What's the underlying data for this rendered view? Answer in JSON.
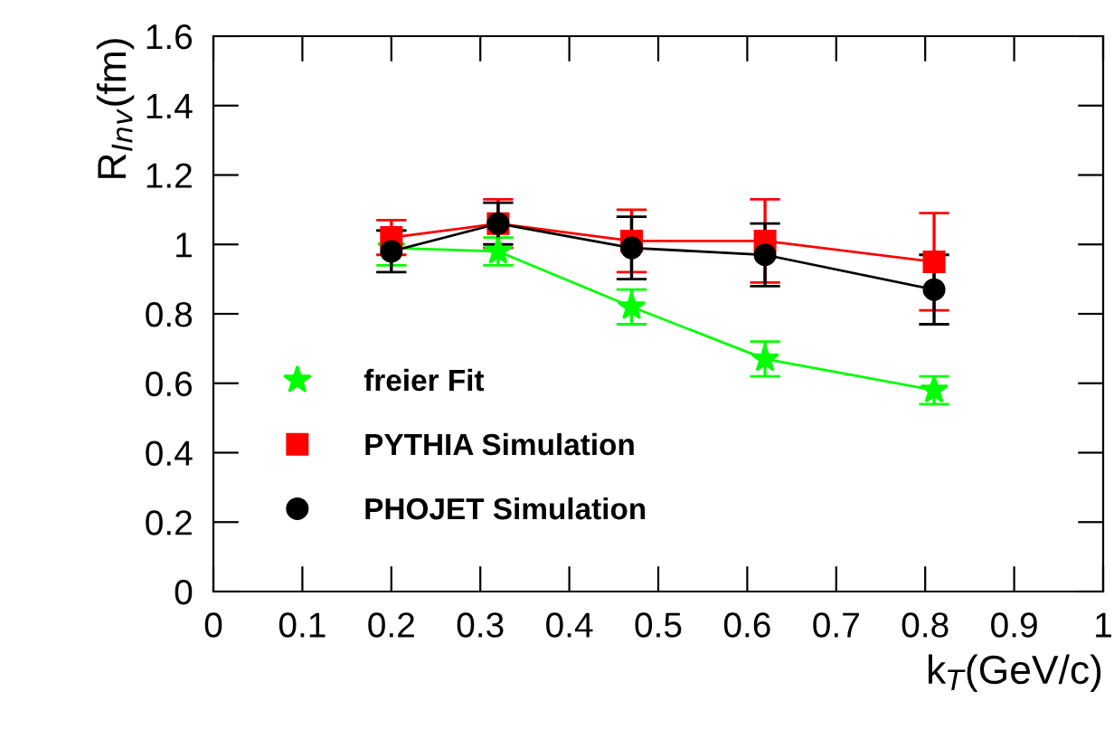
{
  "chart_data": {
    "type": "line",
    "xlabel": "k$_{T}$(GeV/c)",
    "ylabel": "R$_{Inv}$(fm)",
    "x": [
      0.2,
      0.32,
      0.47,
      0.62,
      0.81
    ],
    "xlim": [
      0,
      1
    ],
    "xticks": [
      0,
      0.1,
      0.2,
      0.3,
      0.4,
      0.5,
      0.6,
      0.7,
      0.8,
      0.9,
      1
    ],
    "ylim": [
      0,
      1.6
    ],
    "yticks": [
      0,
      0.2,
      0.4,
      0.6,
      0.8,
      1,
      1.2,
      1.4,
      1.6
    ],
    "grid": false,
    "legend": "bottom left",
    "line_style": "solid",
    "series": [
      {
        "name": "freier Fit",
        "color": "#00ff00",
        "marker": "star",
        "values": [
          0.99,
          0.98,
          0.82,
          0.67,
          0.58
        ],
        "errors": [
          0.05,
          0.04,
          0.05,
          0.05,
          0.04
        ]
      },
      {
        "name": "PYTHIA Simulation",
        "color": "#ff0000",
        "marker": "square",
        "values": [
          1.02,
          1.06,
          1.01,
          1.01,
          0.95
        ],
        "errors": [
          0.05,
          0.07,
          0.09,
          0.12,
          0.14
        ]
      },
      {
        "name": "PHOJET Simulation",
        "color": "#000000",
        "marker": "circle",
        "values": [
          0.98,
          1.06,
          0.99,
          0.97,
          0.87
        ],
        "errors": [
          0.06,
          0.06,
          0.09,
          0.09,
          0.1
        ]
      }
    ]
  }
}
